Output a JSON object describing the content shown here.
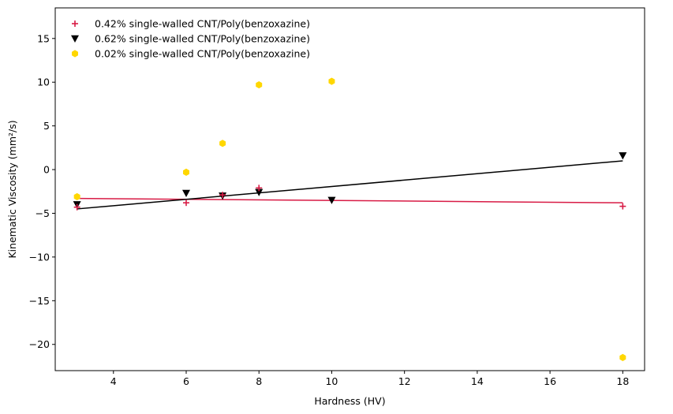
{
  "chart_data": {
    "type": "scatter",
    "title": "",
    "xlabel": "Hardness (HV)",
    "ylabel": "Kinematic Viscosity (mm²/s)",
    "xlim": [
      2.4,
      18.6
    ],
    "ylim": [
      -23,
      18.5
    ],
    "xticks": [
      4,
      6,
      8,
      10,
      12,
      14,
      16,
      18
    ],
    "yticks": [
      -20,
      -15,
      -10,
      -5,
      0,
      5,
      10,
      15
    ],
    "xtick_labels": [
      "4",
      "6",
      "8",
      "10",
      "12",
      "14",
      "16",
      "18"
    ],
    "ytick_labels": [
      "−20",
      "−15",
      "−10",
      "−5",
      "0",
      "5",
      "10",
      "15"
    ],
    "grid": false,
    "legend_position": "top-left",
    "series": [
      {
        "name": "0.42% single-walled CNT/Poly(benzoxazine)",
        "marker": "plus",
        "color": "#d81b45",
        "x": [
          3,
          6,
          7,
          8,
          18
        ],
        "y": [
          -4.3,
          -3.8,
          -2.9,
          -2.1,
          -4.2
        ],
        "trendline": {
          "x": [
            3,
            18
          ],
          "y": [
            -3.3,
            -3.8
          ]
        }
      },
      {
        "name": "0.62% single-walled CNT/Poly(benzoxazine)",
        "marker": "triangle-down",
        "color": "#000000",
        "x": [
          3,
          6,
          7,
          8,
          10,
          18
        ],
        "y": [
          -4.0,
          -2.7,
          -3.0,
          -2.6,
          -3.5,
          1.6
        ],
        "trendline": {
          "x": [
            3,
            18
          ],
          "y": [
            -4.5,
            1.0
          ]
        }
      },
      {
        "name": "0.02% single-walled CNT/Poly(benzoxazine)",
        "marker": "hexagon",
        "color": "#ffd700",
        "x": [
          3,
          6,
          7,
          8,
          10,
          18
        ],
        "y": [
          -3.1,
          -0.3,
          3.0,
          9.7,
          10.1,
          -21.5
        ]
      }
    ]
  }
}
